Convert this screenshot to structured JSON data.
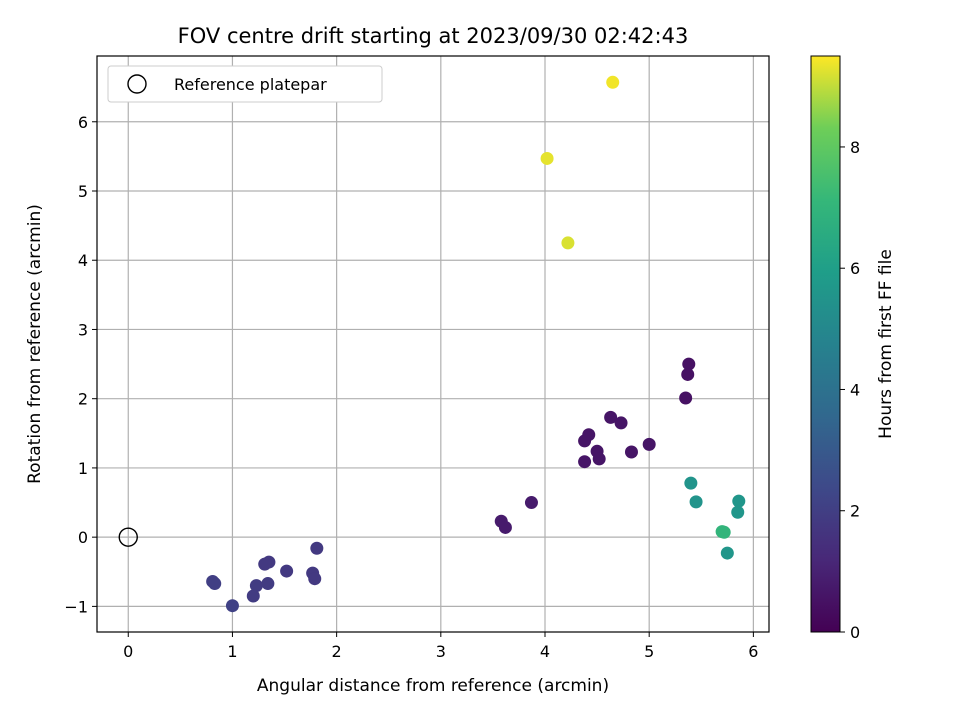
{
  "chart_data": {
    "type": "scatter",
    "title": "FOV centre drift starting at 2023/09/30 02:42:43",
    "xlabel": "Angular distance from reference (arcmin)",
    "ylabel": "Rotation from reference (arcmin)",
    "xlim": [
      -0.3,
      6.15
    ],
    "ylim": [
      -1.37,
      6.95
    ],
    "xticks": [
      "0",
      "1",
      "2",
      "3",
      "4",
      "5",
      "6"
    ],
    "yticks": [
      "−1",
      "0",
      "1",
      "2",
      "3",
      "4",
      "5",
      "6"
    ],
    "grid": true,
    "legend": {
      "placement": "top-left",
      "entries": [
        "Reference platepar"
      ]
    },
    "reference_point": {
      "x": 0,
      "y": 0
    },
    "colorbar": {
      "label": "Hours from first FF file",
      "range": [
        0,
        9.5
      ],
      "ticks": [
        "0",
        "2",
        "4",
        "6",
        "8"
      ],
      "colormap": "viridis"
    },
    "points": [
      {
        "x": 4.65,
        "y": 6.57,
        "h": 9.4
      },
      {
        "x": 4.02,
        "y": 5.47,
        "h": 9.3
      },
      {
        "x": 4.22,
        "y": 4.25,
        "h": 9.2
      },
      {
        "x": 5.38,
        "y": 2.5,
        "h": 0.5
      },
      {
        "x": 5.37,
        "y": 2.35,
        "h": 0.5
      },
      {
        "x": 5.35,
        "y": 2.01,
        "h": 0.5
      },
      {
        "x": 4.63,
        "y": 1.73,
        "h": 0.6
      },
      {
        "x": 4.73,
        "y": 1.65,
        "h": 0.6
      },
      {
        "x": 4.42,
        "y": 1.48,
        "h": 0.6
      },
      {
        "x": 4.38,
        "y": 1.39,
        "h": 0.6
      },
      {
        "x": 5.0,
        "y": 1.34,
        "h": 0.6
      },
      {
        "x": 4.5,
        "y": 1.24,
        "h": 0.6
      },
      {
        "x": 4.83,
        "y": 1.23,
        "h": 0.6
      },
      {
        "x": 4.52,
        "y": 1.13,
        "h": 0.6
      },
      {
        "x": 4.38,
        "y": 1.09,
        "h": 0.6
      },
      {
        "x": 3.87,
        "y": 0.5,
        "h": 0.8
      },
      {
        "x": 3.58,
        "y": 0.23,
        "h": 0.8
      },
      {
        "x": 3.62,
        "y": 0.14,
        "h": 0.8
      },
      {
        "x": 5.4,
        "y": 0.78,
        "h": 5.5
      },
      {
        "x": 5.45,
        "y": 0.51,
        "h": 5.5
      },
      {
        "x": 5.86,
        "y": 0.52,
        "h": 5.6
      },
      {
        "x": 5.85,
        "y": 0.36,
        "h": 5.6
      },
      {
        "x": 5.7,
        "y": 0.08,
        "h": 7.0
      },
      {
        "x": 5.72,
        "y": 0.07,
        "h": 7.0
      },
      {
        "x": 5.75,
        "y": -0.23,
        "h": 5.6
      },
      {
        "x": 1.81,
        "y": -0.16,
        "h": 1.8
      },
      {
        "x": 1.35,
        "y": -0.36,
        "h": 1.8
      },
      {
        "x": 1.31,
        "y": -0.39,
        "h": 1.8
      },
      {
        "x": 1.52,
        "y": -0.49,
        "h": 1.8
      },
      {
        "x": 1.77,
        "y": -0.52,
        "h": 1.8
      },
      {
        "x": 1.79,
        "y": -0.6,
        "h": 1.8
      },
      {
        "x": 0.81,
        "y": -0.64,
        "h": 2.0
      },
      {
        "x": 0.83,
        "y": -0.67,
        "h": 2.0
      },
      {
        "x": 1.34,
        "y": -0.67,
        "h": 1.9
      },
      {
        "x": 1.23,
        "y": -0.7,
        "h": 1.9
      },
      {
        "x": 1.2,
        "y": -0.85,
        "h": 1.9
      },
      {
        "x": 1.0,
        "y": -0.99,
        "h": 2.1
      }
    ]
  }
}
